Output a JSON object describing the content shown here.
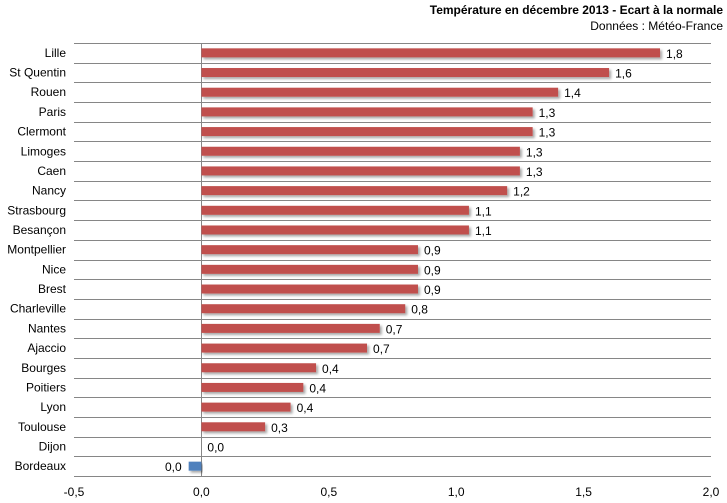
{
  "chart_data": {
    "type": "bar",
    "orientation": "horizontal",
    "title": "Température en décembre 2013 - Ecart à la normale",
    "subtitle": "Données : Météo-France",
    "xlabel": "",
    "ylabel": "",
    "xlim": [
      -0.5,
      2.0
    ],
    "x_ticks": [
      "-0,5",
      "0,0",
      "0,5",
      "1,0",
      "1,5",
      "2,0"
    ],
    "x_tick_values": [
      -0.5,
      0,
      0.5,
      1.0,
      1.5,
      2.0
    ],
    "grid": "horizontal row separators",
    "legend": "none",
    "colors": {
      "positive": "#c0504d",
      "negative": "#4f81bd",
      "grid": "#868686"
    },
    "categories": [
      "Lille",
      "St Quentin",
      "Rouen",
      "Paris",
      "Clermont",
      "Limoges",
      "Caen",
      "Nancy",
      "Strasbourg",
      "Besançon",
      "Montpellier",
      "Nice",
      "Brest",
      "Charleville",
      "Nantes",
      "Ajaccio",
      "Bourges",
      "Poitiers",
      "Lyon",
      "Toulouse",
      "Dijon",
      "Bordeaux"
    ],
    "values": [
      1.8,
      1.6,
      1.4,
      1.3,
      1.3,
      1.25,
      1.25,
      1.2,
      1.05,
      1.05,
      0.85,
      0.85,
      0.85,
      0.8,
      0.7,
      0.65,
      0.45,
      0.4,
      0.35,
      0.25,
      0.0,
      -0.05
    ],
    "data_labels": [
      "1,8",
      "1,6",
      "1,4",
      "1,3",
      "1,3",
      "1,3",
      "1,3",
      "1,2",
      "1,1",
      "1,1",
      "0,9",
      "0,9",
      "0,9",
      "0,8",
      "0,7",
      "0,7",
      "0,4",
      "0,4",
      "0,4",
      "0,3",
      "0,0",
      "0,0"
    ]
  }
}
